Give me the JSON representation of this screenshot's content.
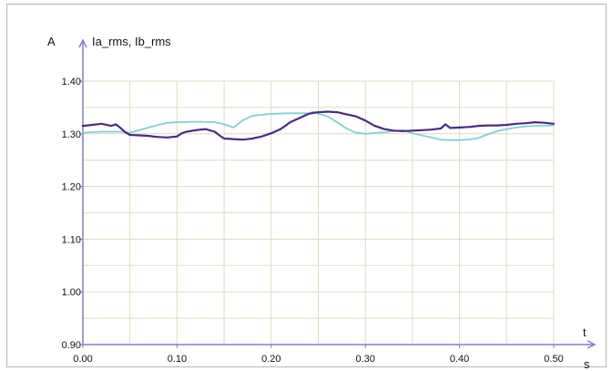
{
  "chart_data": {
    "type": "line",
    "y_unit": "A",
    "y_title": "Ia_rms, Ib_rms",
    "x_axis_letter": "t",
    "x_unit": "s",
    "xlim": [
      0.0,
      0.5
    ],
    "ylim": [
      0.9,
      1.4
    ],
    "x_ticks": [
      "0.00",
      "0.10",
      "0.20",
      "0.30",
      "0.40",
      "0.50"
    ],
    "y_ticks": [
      "0.90",
      "1.00",
      "1.10",
      "1.20",
      "1.30",
      "1.40"
    ],
    "grid": true,
    "colors": {
      "series_dark": "#4b2a84",
      "series_light": "#7ed1d6",
      "axis": "#7f7fd0",
      "grid": "#dcdcbf",
      "frame": "#b0b0b0"
    },
    "series": [
      {
        "color": "#4b2a84",
        "x": [
          0.0,
          0.01,
          0.02,
          0.03,
          0.035,
          0.04,
          0.045,
          0.05,
          0.06,
          0.07,
          0.08,
          0.09,
          0.1,
          0.105,
          0.11,
          0.12,
          0.13,
          0.14,
          0.145,
          0.15,
          0.16,
          0.17,
          0.18,
          0.19,
          0.2,
          0.21,
          0.215,
          0.22,
          0.23,
          0.24,
          0.25,
          0.26,
          0.27,
          0.28,
          0.29,
          0.3,
          0.31,
          0.32,
          0.33,
          0.34,
          0.35,
          0.36,
          0.37,
          0.38,
          0.385,
          0.39,
          0.4,
          0.41,
          0.42,
          0.43,
          0.44,
          0.45,
          0.46,
          0.47,
          0.48,
          0.49,
          0.5
        ],
        "y": [
          1.315,
          1.317,
          1.319,
          1.315,
          1.318,
          1.311,
          1.303,
          1.298,
          1.297,
          1.296,
          1.294,
          1.293,
          1.295,
          1.301,
          1.304,
          1.307,
          1.309,
          1.304,
          1.297,
          1.291,
          1.29,
          1.289,
          1.291,
          1.295,
          1.301,
          1.309,
          1.315,
          1.322,
          1.33,
          1.338,
          1.341,
          1.342,
          1.341,
          1.337,
          1.333,
          1.325,
          1.315,
          1.309,
          1.306,
          1.305,
          1.306,
          1.307,
          1.308,
          1.31,
          1.318,
          1.311,
          1.312,
          1.313,
          1.315,
          1.316,
          1.316,
          1.317,
          1.319,
          1.32,
          1.322,
          1.321,
          1.319
        ]
      },
      {
        "color": "#7ed1d6",
        "x": [
          0.0,
          0.02,
          0.04,
          0.05,
          0.06,
          0.07,
          0.08,
          0.09,
          0.1,
          0.12,
          0.14,
          0.15,
          0.16,
          0.17,
          0.18,
          0.2,
          0.22,
          0.24,
          0.245,
          0.25,
          0.26,
          0.27,
          0.28,
          0.29,
          0.3,
          0.32,
          0.34,
          0.35,
          0.36,
          0.37,
          0.38,
          0.39,
          0.4,
          0.41,
          0.42,
          0.43,
          0.44,
          0.45,
          0.46,
          0.47,
          0.48,
          0.5
        ],
        "y": [
          1.302,
          1.304,
          1.304,
          1.302,
          1.307,
          1.312,
          1.317,
          1.321,
          1.322,
          1.323,
          1.322,
          1.318,
          1.312,
          1.326,
          1.334,
          1.338,
          1.339,
          1.339,
          1.342,
          1.338,
          1.333,
          1.322,
          1.31,
          1.302,
          1.3,
          1.303,
          1.307,
          1.301,
          1.297,
          1.293,
          1.289,
          1.288,
          1.288,
          1.289,
          1.292,
          1.299,
          1.305,
          1.309,
          1.312,
          1.314,
          1.315,
          1.316
        ]
      }
    ]
  }
}
